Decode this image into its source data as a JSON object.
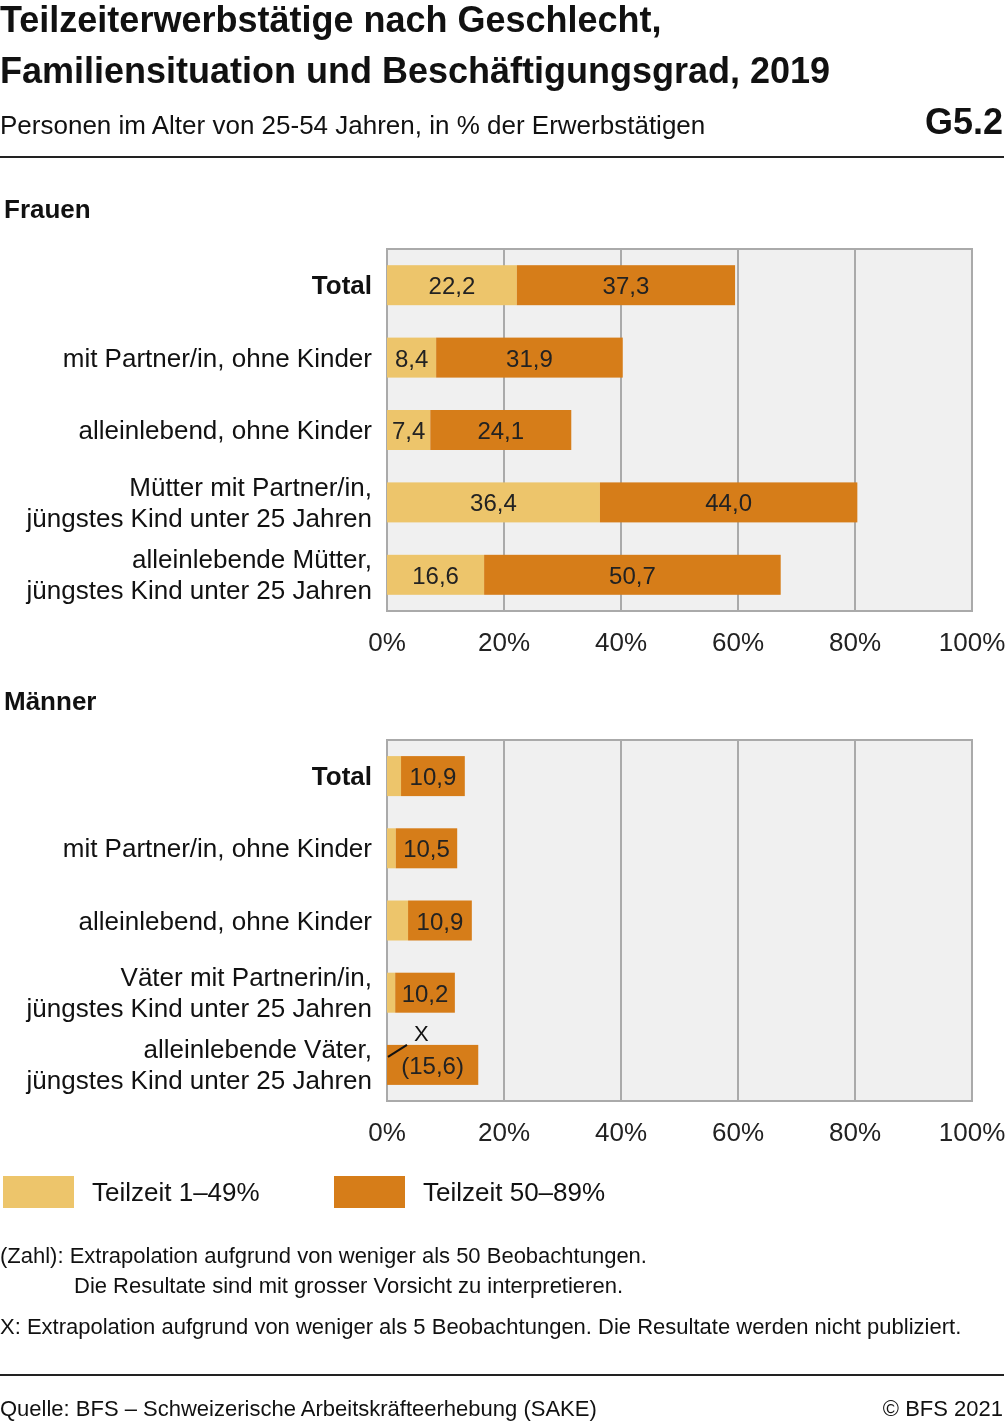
{
  "chart_data": [
    {
      "type": "other",
      "title": "Teilzeiterwerbstätige nach Geschlecht,\nFamiliensituation und Beschäftigungsgrad, 2019",
      "subtitle": "Personen im Alter von 25-54 Jahren, in % der Erwerbstätigen",
      "annotations": [
        "G5.2"
      ]
    },
    {
      "type": "bar",
      "title": "Frauen",
      "stacked": true,
      "orientation": "horizontal",
      "grid": "x",
      "xlim": [
        0,
        100
      ],
      "xticks": [
        {
          "value": 0,
          "label": "0%"
        },
        {
          "value": 20,
          "label": "20%"
        },
        {
          "value": 40,
          "label": "40%"
        },
        {
          "value": 60,
          "label": "60%"
        },
        {
          "value": 80,
          "label": "80%"
        },
        {
          "value": 100,
          "label": "100%"
        }
      ],
      "categories": [
        "Total",
        "mit Partner/in, ohne Kinder",
        "alleinlebend, ohne Kinder",
        "Mütter mit Partner/in,\njüngstes Kind unter 25 Jahren",
        "alleinlebende Mütter,\njüngstes Kind unter 25 Jahren"
      ],
      "series": [
        {
          "color": "#edc56b",
          "values": [
            22.2,
            8.4,
            7.4,
            36.4,
            16.6
          ],
          "value_labels": [
            "22,2",
            "8,4",
            "7,4",
            "36,4",
            "16,6"
          ]
        },
        {
          "color": "#d67d19",
          "values": [
            37.3,
            31.9,
            24.1,
            44.0,
            50.7
          ],
          "value_labels": [
            "37,3",
            "31,9",
            "24,1",
            "44,0",
            "50,7"
          ]
        }
      ]
    },
    {
      "type": "bar",
      "title": "Männer",
      "stacked": true,
      "orientation": "horizontal",
      "grid": "x",
      "xlim": [
        0,
        100
      ],
      "legend": "bottom",
      "xticks": [
        {
          "value": 0,
          "label": "0%"
        },
        {
          "value": 20,
          "label": "20%"
        },
        {
          "value": 40,
          "label": "40%"
        },
        {
          "value": 60,
          "label": "60%"
        },
        {
          "value": 80,
          "label": "80%"
        },
        {
          "value": 100,
          "label": "100%"
        }
      ],
      "categories": [
        "Total",
        "mit Partner/in, ohne Kinder",
        "alleinlebend, ohne Kinder",
        "Väter mit Partnerin/in,\njüngstes Kind unter 25 Jahren",
        "alleinlebende Väter,\njüngstes Kind unter 25 Jahren"
      ],
      "series": [
        {
          "name": "Teilzeit 1–49%",
          "color": "#edc56b",
          "values": [
            2.4,
            1.5,
            3.6,
            1.4,
            null
          ]
        },
        {
          "name": "Teilzeit 50–89%",
          "color": "#d67d19",
          "values": [
            10.9,
            10.5,
            10.9,
            10.2,
            15.6
          ],
          "value_labels": [
            "10,9",
            "10,5",
            "10,9",
            "10,2",
            "(15,6)"
          ]
        }
      ],
      "annotations": [
        {
          "text": "X",
          "x": 0,
          "y": "alleinlebende Väter,\njüngstes Kind unter 25 Jahren"
        },
        "(Zahl): Extrapolation aufgrund von weniger als 50 Beobachtungen.\nDie Resultate sind mit grosser Vorsicht zu interpretieren.",
        "X: Extrapolation aufgrund von weniger als 5 Beobachtungen. Die Resultate werden nicht publiziert.",
        "Quelle: BFS – Schweizerische Arbeitskräfteerhebung (SAKE)",
        "© BFS 2021"
      ]
    }
  ]
}
